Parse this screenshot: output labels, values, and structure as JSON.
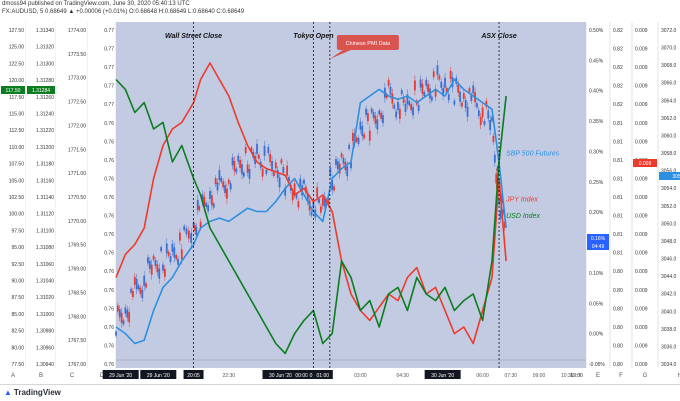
{
  "header": {
    "line1": "dmoss94 published on TradingView.com, June 30, 2020 05:40:13 UTC",
    "line2": "FX:AUDUSD, 5 0.68649 ▲ +0.00006 (+0.01%) O:0.68648 H:0.68649 L:0.68640 C:0.68649"
  },
  "footer": {
    "logo": "TradingView"
  },
  "colors": {
    "plot_bg": "#c3cbe3",
    "sp500": "#2e8fe0",
    "jpy": "#ee3a2b",
    "usd": "#0b7d1f",
    "candle_up": "#3b6fd1",
    "candle_down": "#e83a30",
    "dashed": "#111111",
    "event_box": "#d9534f",
    "gray_line": "#9a9a9a"
  },
  "chart_data": {
    "type": "line",
    "title": "",
    "x_ticks": [
      "29 Jun '20",
      "29 Jun '20",
      "20:05",
      "22:30",
      "30 Jun '20",
      "00:00",
      "0",
      "01:00",
      "03:00",
      "04:30",
      "30 Jun '20",
      "06:00",
      "07:30",
      "09:00",
      "10:30",
      "12:00",
      "13:30"
    ],
    "events": [
      {
        "label": "Wall Street Close",
        "x": 0.165
      },
      {
        "label": "Tokyo Open",
        "x": 0.42
      },
      {
        "label": "ASX Close",
        "x": 0.815
      }
    ],
    "callout": "Chinese PMI Data",
    "series_labels": [
      {
        "text": "SBP 500 Futures",
        "color": "#2e8fe0"
      },
      {
        "text": "JPY Index",
        "color": "#ee3a2b"
      },
      {
        "text": "USD Index",
        "color": "#0b7d1f"
      }
    ],
    "axes": [
      {
        "name": "A",
        "ticks": [
          "127.50",
          "125.00",
          "122.50",
          "120.00",
          "117.50",
          "115.00",
          "112.50",
          "110.00",
          "107.50",
          "105.00",
          "102.50",
          "100.00",
          "97.50",
          "95.00",
          "92.50",
          "90.00",
          "87.50",
          "85.00",
          "82.50",
          "80.00",
          "77.50"
        ],
        "badge": {
          "text": "117.50",
          "color": "#0b7d1f"
        }
      },
      {
        "name": "B",
        "ticks": [
          "1.31340",
          "1.31320",
          "1.31300",
          "1.31280",
          "1.31260",
          "1.31240",
          "1.31220",
          "1.31200",
          "1.31180",
          "1.31160",
          "1.31140",
          "1.31120",
          "1.31100",
          "1.31080",
          "1.31060",
          "1.31040",
          "1.31020",
          "1.31000",
          "1.30980",
          "1.30960",
          "1.30940"
        ],
        "badge": {
          "text": "1.31284",
          "color": "#0b7d1f"
        }
      },
      {
        "name": "C",
        "ticks": [
          "1774.00",
          "1773.50",
          "1773.00",
          "1772.50",
          "1772.00",
          "1771.50",
          "1771.00",
          "1770.50",
          "1770.00",
          "1769.50",
          "1769.00",
          "1768.50",
          "1768.00",
          "1767.50",
          "1767.00"
        ]
      },
      {
        "name": "D",
        "ticks": [
          "0.77",
          "0.77",
          "0.77",
          "0.77",
          "0.77",
          "0.76",
          "0.76",
          "0.76",
          "0.76",
          "0.76",
          "0.76",
          "0.76",
          "0.76",
          "0.76",
          "0.76",
          "0.76",
          "0.76",
          "0.76",
          "0.76"
        ]
      },
      {
        "name": "E",
        "ticks": [
          "0.50%",
          "0.45%",
          "0.40%",
          "0.35%",
          "0.30%",
          "0.25%",
          "0.20%",
          "0.15%",
          "0.10%",
          "0.05%",
          "0.00%",
          "-0.05%"
        ],
        "badge": {
          "text": "0.16%\n04:49",
          "color": "#2962ff"
        }
      },
      {
        "name": "F",
        "ticks": [
          "0.82",
          "0.82",
          "0.82",
          "0.82",
          "0.82",
          "0.81",
          "0.81",
          "0.81",
          "0.81",
          "0.81",
          "0.81",
          "0.81",
          "0.81",
          "0.80",
          "0.80",
          "0.80",
          "0.80",
          "0.80",
          "0.80"
        ]
      },
      {
        "name": "G",
        "ticks": [
          "0.009",
          "0.009",
          "0.009",
          "0.009",
          "0.009",
          "0.009",
          "0.009",
          "0.009",
          "0.009",
          "0.009",
          "0.009",
          "0.009",
          "0.009",
          "0.009",
          "0.009",
          "0.009",
          "0.009",
          "0.009",
          "0.009"
        ],
        "badge": {
          "text": "0.009",
          "color": "#ee3a2b"
        }
      },
      {
        "name": "H",
        "ticks": [
          "3072.0",
          "3070.0",
          "3068.0",
          "3066.0",
          "3064.0",
          "3062.0",
          "3060.0",
          "3058.0",
          "3056.0",
          "3054.0",
          "3052.0",
          "3050.0",
          "3048.0",
          "3046.0",
          "3044.0",
          "3042.0",
          "3040.0",
          "3038.0",
          "3036.0",
          "3034.0"
        ],
        "badge": {
          "text": "3054.2",
          "color": "#2e8fe0"
        }
      }
    ],
    "series": [
      {
        "name": "SBP 500 Futures",
        "x": [
          0,
          0.02,
          0.04,
          0.06,
          0.08,
          0.1,
          0.12,
          0.14,
          0.165,
          0.18,
          0.2,
          0.22,
          0.24,
          0.26,
          0.28,
          0.3,
          0.32,
          0.34,
          0.36,
          0.38,
          0.4,
          0.42,
          0.44,
          0.46,
          0.48,
          0.5,
          0.52,
          0.54,
          0.56,
          0.58,
          0.6,
          0.62,
          0.64,
          0.66,
          0.68,
          0.7,
          0.72,
          0.74,
          0.76,
          0.78,
          0.8,
          0.815,
          0.83
        ],
        "y": [
          0.1,
          0.08,
          0.05,
          0.06,
          0.15,
          0.22,
          0.25,
          0.3,
          0.35,
          0.4,
          0.42,
          0.43,
          0.42,
          0.44,
          0.46,
          0.45,
          0.45,
          0.48,
          0.52,
          0.55,
          0.5,
          0.45,
          0.42,
          0.55,
          0.58,
          0.6,
          0.78,
          0.8,
          0.82,
          0.8,
          0.79,
          0.8,
          0.78,
          0.8,
          0.82,
          0.8,
          0.85,
          0.82,
          0.8,
          0.78,
          0.76,
          0.6,
          0.4
        ]
      },
      {
        "name": "JPY Index",
        "x": [
          0,
          0.02,
          0.04,
          0.06,
          0.08,
          0.1,
          0.12,
          0.14,
          0.165,
          0.18,
          0.2,
          0.22,
          0.24,
          0.26,
          0.28,
          0.3,
          0.32,
          0.34,
          0.36,
          0.38,
          0.4,
          0.42,
          0.44,
          0.46,
          0.48,
          0.5,
          0.52,
          0.54,
          0.56,
          0.58,
          0.6,
          0.62,
          0.64,
          0.66,
          0.68,
          0.7,
          0.72,
          0.74,
          0.76,
          0.78,
          0.8,
          0.815,
          0.83
        ],
        "y": [
          0.25,
          0.32,
          0.35,
          0.4,
          0.55,
          0.65,
          0.7,
          0.72,
          0.78,
          0.85,
          0.9,
          0.85,
          0.8,
          0.72,
          0.65,
          0.6,
          0.58,
          0.57,
          0.56,
          0.5,
          0.52,
          0.48,
          0.5,
          0.45,
          0.3,
          0.2,
          0.15,
          0.12,
          0.16,
          0.2,
          0.18,
          0.25,
          0.28,
          0.2,
          0.22,
          0.15,
          0.08,
          0.1,
          0.05,
          0.15,
          0.25,
          0.55,
          0.3
        ]
      },
      {
        "name": "USD Index",
        "x": [
          0,
          0.02,
          0.04,
          0.06,
          0.08,
          0.1,
          0.12,
          0.14,
          0.165,
          0.18,
          0.2,
          0.22,
          0.24,
          0.26,
          0.28,
          0.3,
          0.32,
          0.34,
          0.36,
          0.38,
          0.4,
          0.42,
          0.44,
          0.46,
          0.48,
          0.5,
          0.52,
          0.54,
          0.56,
          0.58,
          0.6,
          0.62,
          0.64,
          0.66,
          0.68,
          0.7,
          0.72,
          0.74,
          0.76,
          0.78,
          0.8,
          0.815,
          0.83
        ],
        "y": [
          0.85,
          0.82,
          0.75,
          0.78,
          0.7,
          0.72,
          0.6,
          0.65,
          0.55,
          0.5,
          0.4,
          0.35,
          0.3,
          0.25,
          0.2,
          0.15,
          0.1,
          0.05,
          0.02,
          0.08,
          0.12,
          0.15,
          0.05,
          0.08,
          0.3,
          0.25,
          0.15,
          0.18,
          0.1,
          0.2,
          0.22,
          0.15,
          0.25,
          0.2,
          0.18,
          0.22,
          0.15,
          0.18,
          0.2,
          0.12,
          0.3,
          0.6,
          0.8
        ]
      },
      {
        "name": "AUDUSD candles",
        "x": [
          0,
          0.02,
          0.04,
          0.06,
          0.08,
          0.1,
          0.12,
          0.14,
          0.165,
          0.18,
          0.2,
          0.22,
          0.24,
          0.26,
          0.28,
          0.3,
          0.32,
          0.34,
          0.36,
          0.38,
          0.4,
          0.42,
          0.44,
          0.46,
          0.48,
          0.5,
          0.52,
          0.54,
          0.56,
          0.58,
          0.6,
          0.62,
          0.64,
          0.66,
          0.68,
          0.7,
          0.72,
          0.74,
          0.76,
          0.78,
          0.8,
          0.815,
          0.83
        ],
        "y": [
          0.12,
          0.15,
          0.2,
          0.25,
          0.28,
          0.3,
          0.32,
          0.35,
          0.4,
          0.45,
          0.5,
          0.52,
          0.55,
          0.58,
          0.6,
          0.62,
          0.6,
          0.58,
          0.55,
          0.52,
          0.5,
          0.48,
          0.45,
          0.55,
          0.6,
          0.62,
          0.7,
          0.72,
          0.75,
          0.8,
          0.78,
          0.76,
          0.8,
          0.82,
          0.84,
          0.83,
          0.82,
          0.8,
          0.78,
          0.76,
          0.7,
          0.5,
          0.4
        ]
      }
    ]
  }
}
